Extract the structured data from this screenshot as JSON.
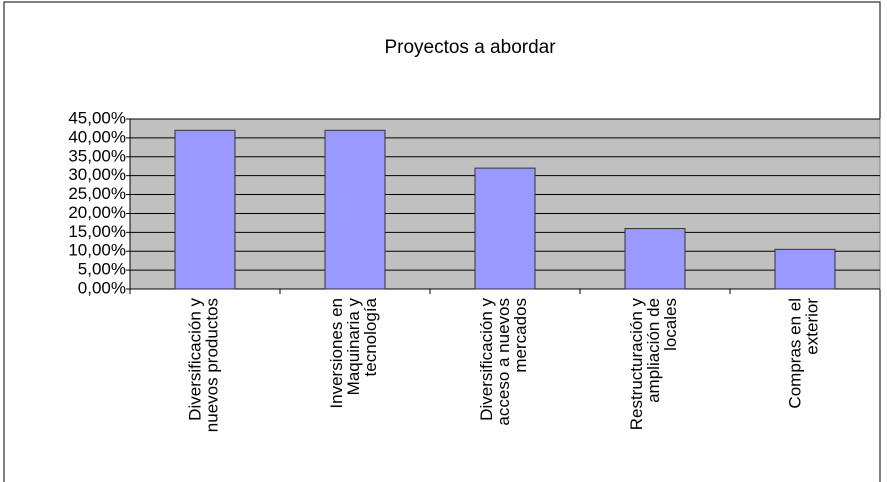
{
  "chart_data": {
    "type": "bar",
    "title": "Proyectos a abordar",
    "categories": [
      "Diversificación y nuevos productos",
      "Inversiones en Maquinaria y tecnología",
      "Diversificación y acceso a nuevos mercados",
      "Restructuración y ampliación de locales",
      "Compras en el exterior"
    ],
    "values": [
      42,
      42,
      32,
      16,
      10.5
    ],
    "color": "#9999ff",
    "ylim": [
      0,
      45
    ],
    "yticks": [
      {
        "value": 0,
        "label": "0,00%"
      },
      {
        "value": 5,
        "label": "5,00%"
      },
      {
        "value": 10,
        "label": "10,00%"
      },
      {
        "value": 15,
        "label": "15,00%"
      },
      {
        "value": 20,
        "label": "20,00%"
      },
      {
        "value": 25,
        "label": "25,00%"
      },
      {
        "value": 30,
        "label": "30,00%"
      },
      {
        "value": 35,
        "label": "35,00%"
      },
      {
        "value": 40,
        "label": "40,00%"
      },
      {
        "value": 45,
        "label": "45,00%"
      }
    ],
    "grid": true
  }
}
